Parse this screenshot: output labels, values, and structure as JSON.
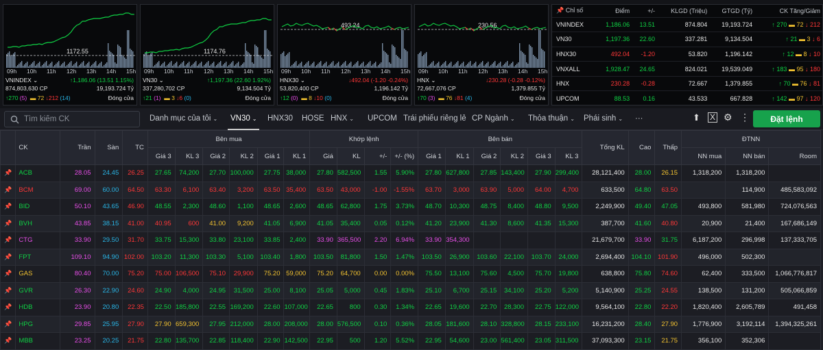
{
  "colors": {
    "green": "#0fd144",
    "red": "#ff3737",
    "ref": "#f2c230",
    "ceil": "#e84ee8",
    "floor": "#29b5e6",
    "accent": "#17a24c"
  },
  "charts": [
    {
      "name": "VNINDEX",
      "ref_label": "1172.55",
      "volume": "874,803,630 CP",
      "change": "↑1,186.06 (13.51 1.15%)",
      "value": "19,193.724 Tỷ",
      "up": "↑270",
      "ceil": "(5)",
      "ref": "72",
      "down": "↓212",
      "floor": "(14)",
      "status": "Đóng cửa",
      "trend": "up"
    },
    {
      "name": "VN30",
      "ref_label": "1174.76",
      "volume": "337,280,702 CP",
      "change": "↑1,197.36 (22.60 1.92%)",
      "value": "9,134.504 Tỷ",
      "up": "↑21",
      "ceil": "(1)",
      "ref": "3",
      "down": "↓6",
      "floor": "(0)",
      "status": "Đóng cửa",
      "trend": "up"
    },
    {
      "name": "HNX30",
      "ref_label": "493.24",
      "volume": "53,820,400 CP",
      "change": "↓492.04 (-1.20 -0.24%)",
      "value": "1,196.142 Tỷ",
      "up": "↑12",
      "ceil": "(0)",
      "ref": "8",
      "down": "↓10",
      "floor": "(0)",
      "status": "Đóng cửa",
      "trend": "mixed"
    },
    {
      "name": "HNX",
      "ref_label": "230.56",
      "volume": "72,667,076 CP",
      "change": "↓230.28 (-0.28 -0.12%)",
      "value": "1,379.855 Tỷ",
      "up": "↑70",
      "ceil": "(3)",
      "ref": "76",
      "down": "↓81",
      "floor": "(4)",
      "status": "Đóng cửa",
      "trend": "mixed"
    }
  ],
  "chart_times": [
    "09h",
    "10h",
    "11h",
    "12h",
    "13h",
    "14h",
    "15h"
  ],
  "summary": {
    "headers": [
      "Chỉ số",
      "Điểm",
      "+/-",
      "KLGD (Triệu)",
      "GTGD (Tỷ)",
      "CK Tăng/Giảm"
    ],
    "rows": [
      {
        "name": "VNINDEX",
        "point": "1,186.06",
        "change": "13.51",
        "vol": "874.804",
        "val": "19,193.724",
        "up": "↑ 270",
        "ref": "72",
        "down": "↓ 212",
        "dir": "green"
      },
      {
        "name": "VN30",
        "point": "1,197.36",
        "change": "22.60",
        "vol": "337.281",
        "val": "9,134.504",
        "up": "↑ 21",
        "ref": "3",
        "down": "↓ 6",
        "dir": "green"
      },
      {
        "name": "HNX30",
        "point": "492.04",
        "change": "-1.20",
        "vol": "53.820",
        "val": "1,196.142",
        "up": "↑ 12",
        "ref": "8",
        "down": "↓ 10",
        "dir": "red"
      },
      {
        "name": "VNXALL",
        "point": "1,928.47",
        "change": "24.65",
        "vol": "824.021",
        "val": "19,539.049",
        "up": "↑ 183",
        "ref": "95",
        "down": "↓ 180",
        "dir": "green"
      },
      {
        "name": "HNX",
        "point": "230.28",
        "change": "-0.28",
        "vol": "72.667",
        "val": "1,379.855",
        "up": "↑ 70",
        "ref": "76",
        "down": "↓ 81",
        "dir": "red"
      },
      {
        "name": "UPCOM",
        "point": "88.53",
        "change": "0.16",
        "vol": "43.533",
        "val": "667.828",
        "up": "↑ 142",
        "ref": "97",
        "down": "↓ 120",
        "dir": "green"
      }
    ]
  },
  "toolbar": {
    "search_placeholder": "Tìm kiếm CK",
    "tabs": [
      "Danh mục của tôi",
      "VN30",
      "HNX30",
      "HOSE",
      "HNX",
      "UPCOM",
      "Trái phiếu riêng lẻ",
      "CP Ngành",
      "Thỏa thuận",
      "Phái sinh",
      "···"
    ],
    "order_label": "Đặt lệnh",
    "icons": [
      "upload-icon",
      "excel-icon",
      "gear-icon",
      "more-vertical-icon"
    ]
  },
  "board": {
    "groups": {
      "ck": "CK",
      "tran": "Trần",
      "san": "Sàn",
      "tc": "TC",
      "ben_mua": "Bên mua",
      "khop": "Khớp lệnh",
      "ben_ban": "Bên bán",
      "tongkl": "Tổng KL",
      "cao": "Cao",
      "thap": "Thấp",
      "dtnn": "ĐTNN"
    },
    "sub": [
      "Giá 3",
      "KL 3",
      "Giá 2",
      "KL 2",
      "Giá 1",
      "KL 1",
      "Giá",
      "KL",
      "+/-",
      "+/- (%)",
      "Giá 1",
      "KL 1",
      "Giá 2",
      "KL 2",
      "Giá 3",
      "KL 3",
      "NN mua",
      "NN bán",
      "Room"
    ],
    "rows": [
      {
        "s": "ACB",
        "c": "g",
        "v": [
          "28.05",
          "24.45",
          "26.25",
          "27.65",
          "74,200",
          "27.70",
          "100,000",
          "27.75",
          "38,000",
          "27.80",
          "582,500",
          "1.55",
          "5.90%",
          "27.80",
          "627,800",
          "27.85",
          "143,400",
          "27.90",
          "299,400",
          "28,121,400",
          "28.00",
          "26.15",
          "1,318,200",
          "1,318,200",
          ""
        ],
        "k": [
          "p",
          "f",
          "r",
          "g",
          "g",
          "g",
          "g",
          "g",
          "g",
          "g",
          "g",
          "g",
          "g",
          "g",
          "g",
          "g",
          "g",
          "g",
          "g",
          "w",
          "g",
          "y",
          "w",
          "w",
          "w"
        ]
      },
      {
        "s": "BCM",
        "c": "r",
        "v": [
          "69.00",
          "60.00",
          "64.50",
          "63.30",
          "6,100",
          "63.40",
          "3,200",
          "63.50",
          "35,400",
          "63.50",
          "43,000",
          "-1.00",
          "-1.55%",
          "63.70",
          "3,000",
          "63.90",
          "5,000",
          "64.00",
          "4,700",
          "633,500",
          "64.80",
          "63.50",
          "",
          "114,900",
          "485,583,092"
        ],
        "k": [
          "p",
          "f",
          "r",
          "r",
          "r",
          "r",
          "r",
          "r",
          "r",
          "r",
          "r",
          "r",
          "r",
          "r",
          "r",
          "r",
          "r",
          "r",
          "r",
          "w",
          "g",
          "r",
          "w",
          "w",
          "w"
        ]
      },
      {
        "s": "BID",
        "c": "g",
        "v": [
          "50.10",
          "43.65",
          "46.90",
          "48.55",
          "2,300",
          "48.60",
          "1,100",
          "48.65",
          "2,600",
          "48.65",
          "62,800",
          "1.75",
          "3.73%",
          "48.70",
          "10,300",
          "48.75",
          "8,400",
          "48.80",
          "9,500",
          "2,249,900",
          "49.40",
          "47.05",
          "493,800",
          "581,980",
          "724,076,563"
        ],
        "k": [
          "p",
          "f",
          "r",
          "g",
          "g",
          "g",
          "g",
          "g",
          "g",
          "g",
          "g",
          "g",
          "g",
          "g",
          "g",
          "g",
          "g",
          "g",
          "g",
          "w",
          "g",
          "g",
          "w",
          "w",
          "w"
        ]
      },
      {
        "s": "BVH",
        "c": "g",
        "v": [
          "43.85",
          "38.15",
          "41.00",
          "40.95",
          "600",
          "41.00",
          "9,200",
          "41.05",
          "6,900",
          "41.05",
          "35,400",
          "0.05",
          "0.12%",
          "41.20",
          "23,900",
          "41.30",
          "8,600",
          "41.35",
          "15,300",
          "387,700",
          "41.60",
          "40.80",
          "20,900",
          "21,400",
          "167,686,149"
        ],
        "k": [
          "p",
          "f",
          "r",
          "r",
          "r",
          "y",
          "y",
          "g",
          "g",
          "g",
          "g",
          "g",
          "g",
          "g",
          "g",
          "g",
          "g",
          "g",
          "g",
          "w",
          "g",
          "r",
          "w",
          "w",
          "w"
        ]
      },
      {
        "s": "CTG",
        "c": "p",
        "v": [
          "33.90",
          "29.50",
          "31.70",
          "33.75",
          "15,300",
          "33.80",
          "23,100",
          "33.85",
          "2,400",
          "33.90",
          "365,500",
          "2.20",
          "6.94%",
          "33.90",
          "354,300",
          "",
          "",
          "",
          "",
          "21,679,700",
          "33.90",
          "31.75",
          "6,187,200",
          "296,998",
          "137,333,705"
        ],
        "k": [
          "p",
          "f",
          "r",
          "g",
          "g",
          "g",
          "g",
          "g",
          "g",
          "p",
          "p",
          "p",
          "p",
          "p",
          "p",
          "g",
          "g",
          "g",
          "g",
          "w",
          "p",
          "g",
          "w",
          "w",
          "w"
        ]
      },
      {
        "s": "FPT",
        "c": "g",
        "v": [
          "109.10",
          "94.90",
          "102.00",
          "103.20",
          "11,300",
          "103.30",
          "5,100",
          "103.40",
          "1,800",
          "103.50",
          "81,800",
          "1.50",
          "1.47%",
          "103.50",
          "26,900",
          "103.60",
          "22,100",
          "103.70",
          "24,000",
          "2,694,400",
          "104.10",
          "101.90",
          "496,000",
          "502,300",
          ""
        ],
        "k": [
          "p",
          "f",
          "r",
          "g",
          "g",
          "g",
          "g",
          "g",
          "g",
          "g",
          "g",
          "g",
          "g",
          "g",
          "g",
          "g",
          "g",
          "g",
          "g",
          "w",
          "g",
          "r",
          "w",
          "w",
          "w"
        ]
      },
      {
        "s": "GAS",
        "c": "y",
        "v": [
          "80.40",
          "70.00",
          "75.20",
          "75.00",
          "106,500",
          "75.10",
          "29,900",
          "75.20",
          "59,000",
          "75.20",
          "64,700",
          "0.00",
          "0.00%",
          "75.50",
          "13,100",
          "75.60",
          "4,500",
          "75.70",
          "19,800",
          "638,800",
          "75.80",
          "74.60",
          "62,400",
          "333,500",
          "1,066,776,817"
        ],
        "k": [
          "p",
          "f",
          "r",
          "r",
          "r",
          "r",
          "r",
          "y",
          "y",
          "y",
          "y",
          "y",
          "y",
          "g",
          "g",
          "g",
          "g",
          "g",
          "g",
          "w",
          "g",
          "r",
          "w",
          "w",
          "w"
        ]
      },
      {
        "s": "GVR",
        "c": "g",
        "v": [
          "26.30",
          "22.90",
          "24.60",
          "24.90",
          "4,000",
          "24.95",
          "31,500",
          "25.00",
          "8,100",
          "25.05",
          "5,000",
          "0.45",
          "1.83%",
          "25.10",
          "6,700",
          "25.15",
          "34,100",
          "25.20",
          "5,200",
          "5,140,900",
          "25.25",
          "24.55",
          "138,500",
          "131,200",
          "505,066,859"
        ],
        "k": [
          "p",
          "f",
          "r",
          "g",
          "g",
          "g",
          "g",
          "g",
          "g",
          "g",
          "g",
          "g",
          "g",
          "g",
          "g",
          "g",
          "g",
          "g",
          "g",
          "w",
          "g",
          "r",
          "w",
          "w",
          "w"
        ]
      },
      {
        "s": "HDB",
        "c": "g",
        "v": [
          "23.90",
          "20.80",
          "22.35",
          "22.50",
          "185,800",
          "22.55",
          "169,200",
          "22.60",
          "107,000",
          "22.65",
          "800",
          "0.30",
          "1.34%",
          "22.65",
          "19,600",
          "22.70",
          "28,300",
          "22.75",
          "122,000",
          "9,564,100",
          "22.80",
          "22.20",
          "1,820,400",
          "2,605,789",
          "491,458"
        ],
        "k": [
          "p",
          "f",
          "r",
          "g",
          "g",
          "g",
          "g",
          "g",
          "g",
          "g",
          "g",
          "g",
          "g",
          "g",
          "g",
          "g",
          "g",
          "g",
          "g",
          "w",
          "g",
          "r",
          "w",
          "w",
          "w"
        ]
      },
      {
        "s": "HPG",
        "c": "g",
        "v": [
          "29.85",
          "25.95",
          "27.90",
          "27.90",
          "659,300",
          "27.95",
          "212,000",
          "28.00",
          "208,000",
          "28.00",
          "576,500",
          "0.10",
          "0.36%",
          "28.05",
          "181,600",
          "28.10",
          "328,800",
          "28.15",
          "233,100",
          "16,231,200",
          "28.40",
          "27.90",
          "1,776,900",
          "3,192,114",
          "1,394,325,261"
        ],
        "k": [
          "p",
          "f",
          "r",
          "y",
          "y",
          "g",
          "g",
          "g",
          "g",
          "g",
          "g",
          "g",
          "g",
          "g",
          "g",
          "g",
          "g",
          "g",
          "g",
          "w",
          "g",
          "y",
          "w",
          "w",
          "w"
        ]
      },
      {
        "s": "MBB",
        "c": "g",
        "v": [
          "23.25",
          "20.25",
          "21.75",
          "22.80",
          "135,700",
          "22.85",
          "118,400",
          "22.90",
          "142,500",
          "22.95",
          "500",
          "1.20",
          "5.52%",
          "22.95",
          "54,600",
          "23.00",
          "561,400",
          "23.05",
          "311,500",
          "37,093,300",
          "23.15",
          "21.75",
          "356,100",
          "352,306",
          ""
        ],
        "k": [
          "p",
          "f",
          "r",
          "g",
          "g",
          "g",
          "g",
          "g",
          "g",
          "g",
          "g",
          "g",
          "g",
          "g",
          "g",
          "g",
          "g",
          "g",
          "g",
          "w",
          "g",
          "y",
          "w",
          "w",
          "w"
        ]
      }
    ]
  }
}
